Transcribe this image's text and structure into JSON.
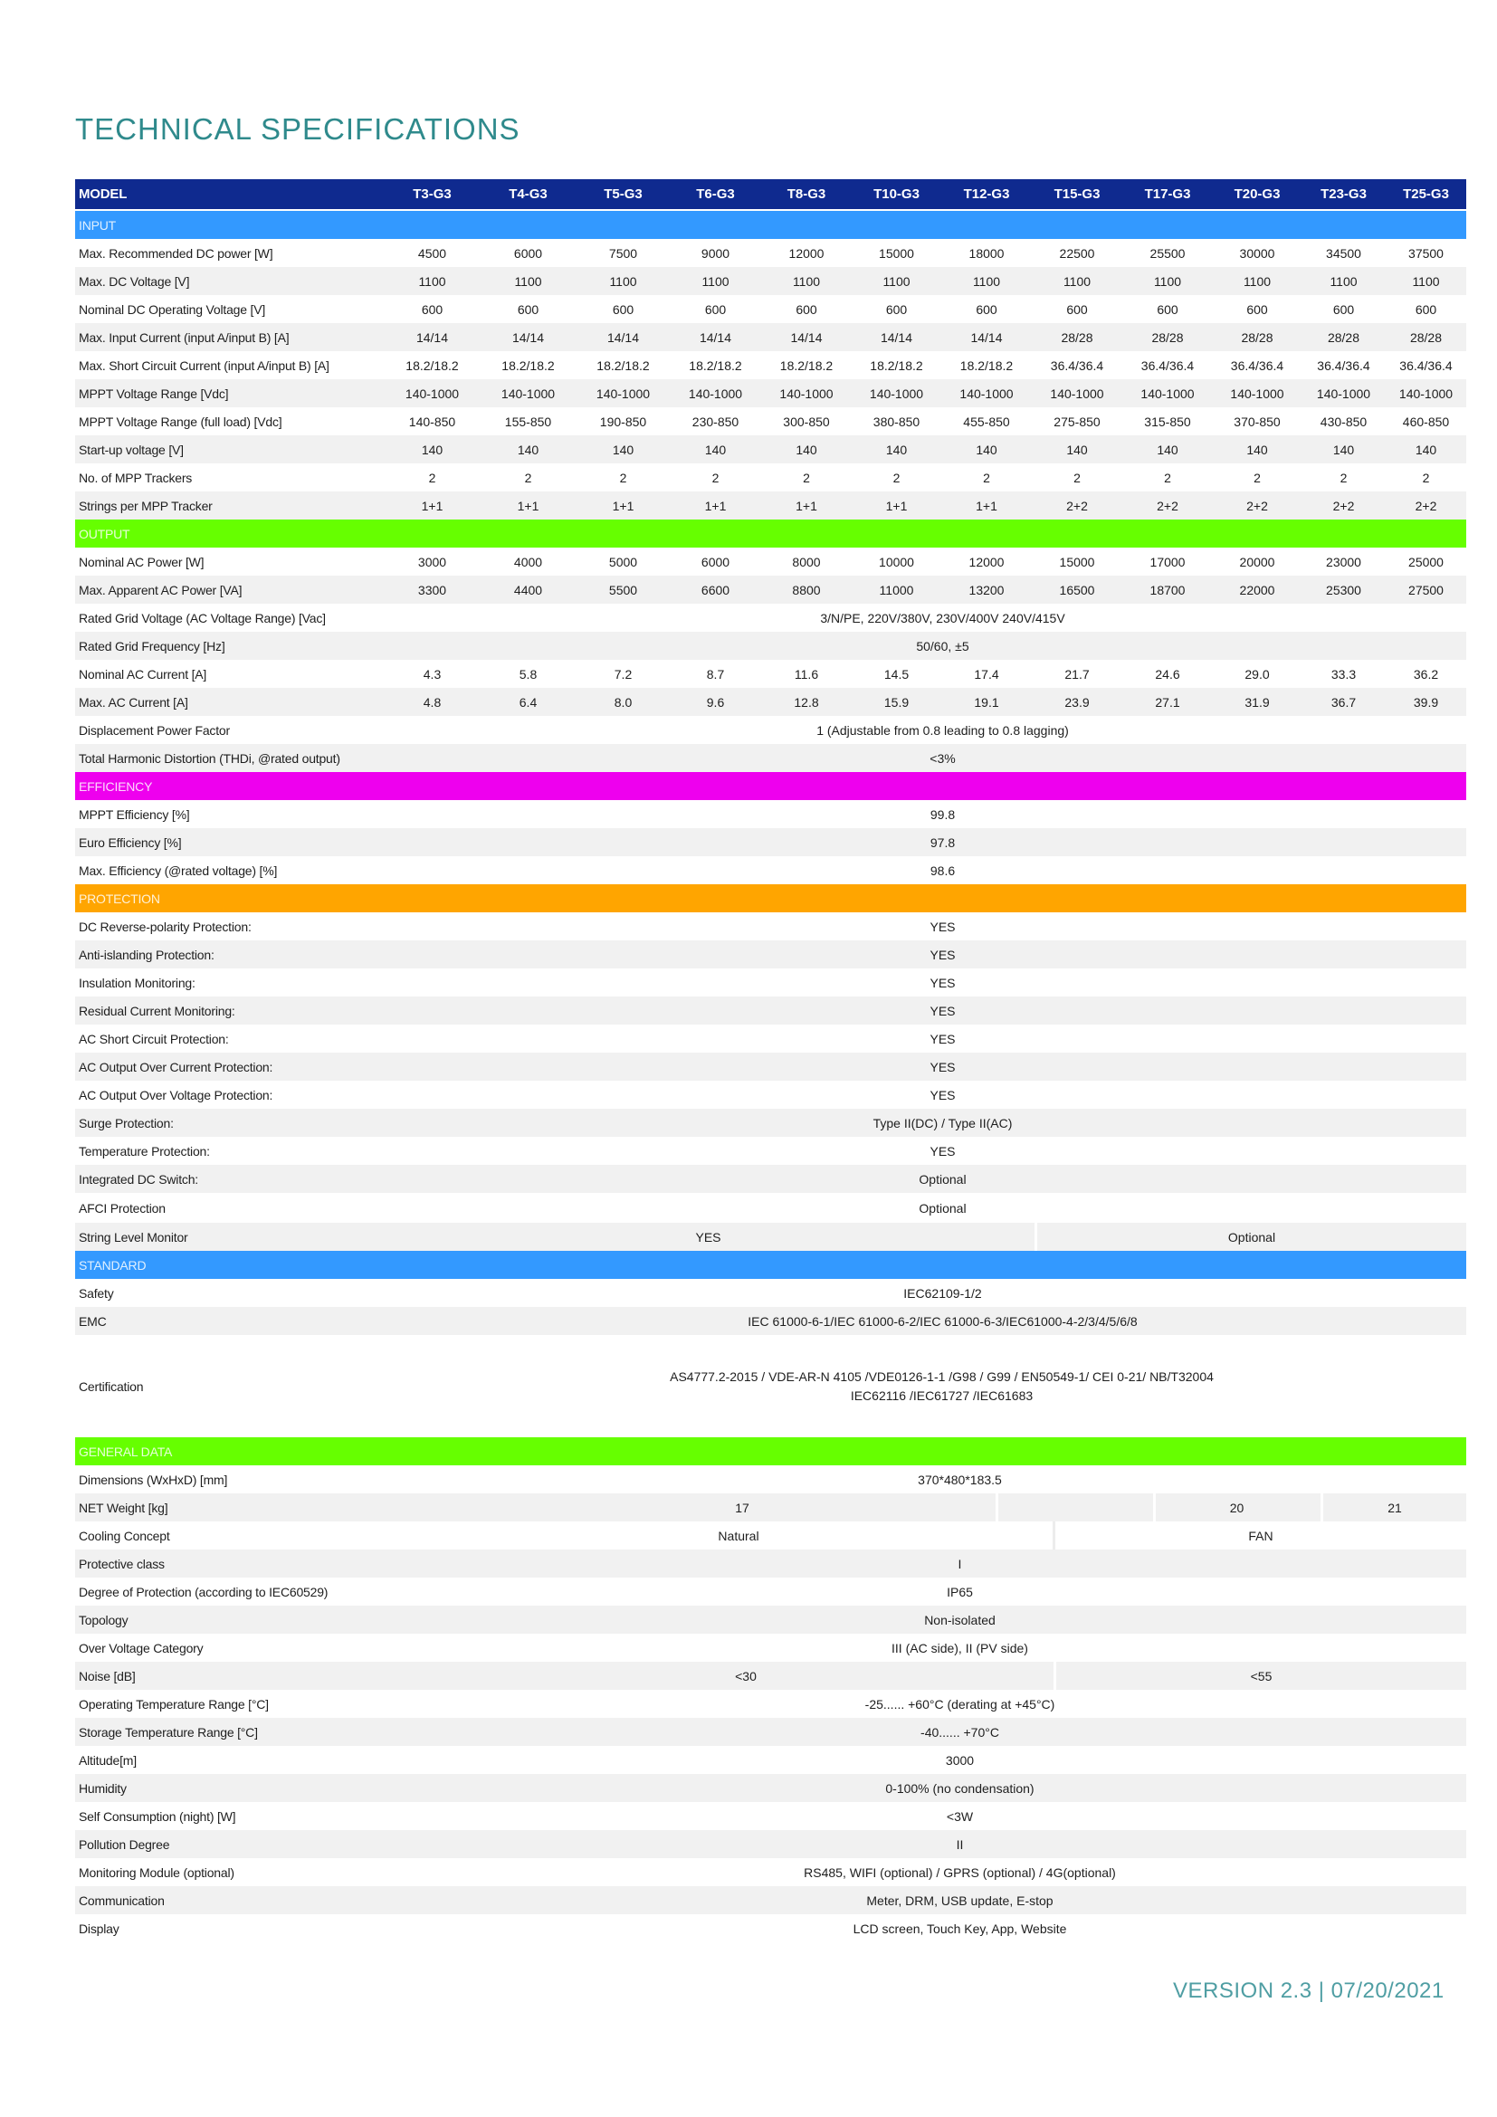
{
  "title": "TECHNICAL SPECIFICATIONS",
  "header": {
    "label": "MODEL",
    "models": [
      "T3-G3",
      "T4-G3",
      "T5-G3",
      "T6-G3",
      "T8-G3",
      "T10-G3",
      "T12-G3",
      "T15-G3",
      "T17-G3",
      "T20-G3",
      "T23-G3",
      "T25-G3"
    ]
  },
  "colors": {
    "header": "#0f2a8f",
    "input": "#3399ff",
    "output": "#66ff00",
    "efficiency": "#ee00ee",
    "protection": "#ffa500",
    "standard": "#3399ff",
    "general": "#66ff00",
    "title": "#2f8a8c",
    "row_alt": "#f1f1f1"
  },
  "sections": [
    {
      "name": "INPUT",
      "color": "#3399ff",
      "rows": [
        {
          "label": "Max. Recommended DC power [W]",
          "values": [
            "4500",
            "6000",
            "7500",
            "9000",
            "12000",
            "15000",
            "18000",
            "22500",
            "25500",
            "30000",
            "34500",
            "37500"
          ]
        },
        {
          "label": "Max. DC Voltage [V]",
          "values": [
            "1100",
            "1100",
            "1100",
            "1100",
            "1100",
            "1100",
            "1100",
            "1100",
            "1100",
            "1100",
            "1100",
            "1100"
          ]
        },
        {
          "label": "Nominal DC Operating Voltage [V]",
          "values": [
            "600",
            "600",
            "600",
            "600",
            "600",
            "600",
            "600",
            "600",
            "600",
            "600",
            "600",
            "600"
          ]
        },
        {
          "label": "Max. Input Current (input A/input B) [A]",
          "values": [
            "14/14",
            "14/14",
            "14/14",
            "14/14",
            "14/14",
            "14/14",
            "14/14",
            "28/28",
            "28/28",
            "28/28",
            "28/28",
            "28/28"
          ]
        },
        {
          "label": "Max. Short Circuit Current (input A/input B) [A]",
          "values": [
            "18.2/18.2",
            "18.2/18.2",
            "18.2/18.2",
            "18.2/18.2",
            "18.2/18.2",
            "18.2/18.2",
            "18.2/18.2",
            "36.4/36.4",
            "36.4/36.4",
            "36.4/36.4",
            "36.4/36.4",
            "36.4/36.4"
          ]
        },
        {
          "label": "MPPT Voltage Range [Vdc]",
          "values": [
            "140-1000",
            "140-1000",
            "140-1000",
            "140-1000",
            "140-1000",
            "140-1000",
            "140-1000",
            "140-1000",
            "140-1000",
            "140-1000",
            "140-1000",
            "140-1000"
          ]
        },
        {
          "label": "MPPT Voltage Range (full load) [Vdc]",
          "values": [
            "140-850",
            "155-850",
            "190-850",
            "230-850",
            "300-850",
            "380-850",
            "455-850",
            "275-850",
            "315-850",
            "370-850",
            "430-850",
            "460-850"
          ]
        },
        {
          "label": "Start-up voltage [V]",
          "values": [
            "140",
            "140",
            "140",
            "140",
            "140",
            "140",
            "140",
            "140",
            "140",
            "140",
            "140",
            "140"
          ]
        },
        {
          "label": "No. of MPP Trackers",
          "values": [
            "2",
            "2",
            "2",
            "2",
            "2",
            "2",
            "2",
            "2",
            "2",
            "2",
            "2",
            "2"
          ]
        },
        {
          "label": "Strings per MPP Tracker",
          "values": [
            "1+1",
            "1+1",
            "1+1",
            "1+1",
            "1+1",
            "1+1",
            "1+1",
            "2+2",
            "2+2",
            "2+2",
            "2+2",
            "2+2"
          ]
        }
      ]
    },
    {
      "name": "OUTPUT",
      "color": "#66ff00",
      "rows": [
        {
          "label": "Nominal AC Power [W]",
          "values": [
            "3000",
            "4000",
            "5000",
            "6000",
            "8000",
            "10000",
            "12000",
            "15000",
            "17000",
            "20000",
            "23000",
            "25000"
          ]
        },
        {
          "label": "Max. Apparent AC Power [VA]",
          "values": [
            "3300",
            "4400",
            "5500",
            "6600",
            "8800",
            "11000",
            "13200",
            "16500",
            "18700",
            "22000",
            "25300",
            "27500"
          ]
        },
        {
          "label": "Rated Grid Voltage (AC Voltage Range) [Vac]",
          "value": "3/N/PE, 220V/380V, 230V/400V 240V/415V"
        },
        {
          "label": "Rated Grid Frequency [Hz]",
          "value": "50/60, ±5"
        },
        {
          "label": "Nominal AC Current [A]",
          "values": [
            "4.3",
            "5.8",
            "7.2",
            "8.7",
            "11.6",
            "14.5",
            "17.4",
            "21.7",
            "24.6",
            "29.0",
            "33.3",
            "36.2"
          ]
        },
        {
          "label": "Max. AC Current [A]",
          "values": [
            "4.8",
            "6.4",
            "8.0",
            "9.6",
            "12.8",
            "15.9",
            "19.1",
            "23.9",
            "27.1",
            "31.9",
            "36.7",
            "39.9"
          ]
        },
        {
          "label": "Displacement Power Factor",
          "value": "1 (Adjustable from 0.8 leading to 0.8 lagging)"
        },
        {
          "label": "Total Harmonic Distortion (THDi, @rated output)",
          "value": "<3%"
        }
      ]
    },
    {
      "name": "EFFICIENCY",
      "color": "#ee00ee",
      "rows": [
        {
          "label": "MPPT Efficiency [%]",
          "value": "99.8"
        },
        {
          "label": "Euro Efficiency [%]",
          "value": "97.8"
        },
        {
          "label": "Max. Efficiency (@rated voltage) [%]",
          "value": "98.6"
        }
      ]
    },
    {
      "name": "PROTECTION",
      "color": "#ffa500",
      "rows": [
        {
          "label": "DC Reverse-polarity Protection:",
          "value": "YES"
        },
        {
          "label": "Anti-islanding Protection:",
          "value": "YES"
        },
        {
          "label": "Insulation Monitoring:",
          "value": "YES"
        },
        {
          "label": "Residual Current Monitoring:",
          "value": "YES"
        },
        {
          "label": "AC Short Circuit Protection:",
          "value": "YES"
        },
        {
          "label": "AC Output Over Current Protection:",
          "value": "YES"
        },
        {
          "label": "AC Output Over Voltage Protection:",
          "value": "YES"
        },
        {
          "label": "Surge Protection:",
          "value": "Type II(DC) / Type II(AC)"
        },
        {
          "label": "Temperature Protection:",
          "value": "YES"
        },
        {
          "label": "Integrated DC Switch:",
          "value": "Optional"
        },
        {
          "label": "AFCI Protection",
          "value": "Optional"
        },
        {
          "label": "String Level Monitor",
          "cells": [
            "YES",
            "Optional"
          ]
        }
      ]
    },
    {
      "name": "STANDARD",
      "color": "#3399ff",
      "rows": [
        {
          "label": "Safety",
          "value": "IEC62109-1/2"
        },
        {
          "label": "EMC",
          "value": "IEC 61000-6-1/IEC 61000-6-2/IEC 61000-6-3/IEC61000-4-2/3/4/5/6/8"
        },
        {
          "label": "Certification",
          "lines": [
            "AS4777.2-2015 / VDE-AR-N 4105 /VDE0126-1-1  /G98  / G99 / EN50549-1/ CEI 0-21/ NB/T32004",
            "IEC62116 /IEC61727 /IEC61683"
          ]
        }
      ]
    },
    {
      "name": "GENERAL DATA",
      "color": "#66ff00",
      "rows": [
        {
          "label": "Dimensions (WxHxD) [mm]",
          "value": "370*480*183.5"
        },
        {
          "label": "NET Weight [kg]",
          "cells": [
            "17",
            "",
            "20",
            "21"
          ]
        },
        {
          "label": "Cooling Concept",
          "cells": [
            "Natural",
            "FAN"
          ]
        },
        {
          "label": "Protective class",
          "value": "I"
        },
        {
          "label": "Degree of Protection (according to IEC60529)",
          "value": "IP65"
        },
        {
          "label": "Topology",
          "value": "Non-isolated"
        },
        {
          "label": "Over Voltage Category",
          "value": "III (AC side), II (PV side)"
        },
        {
          "label": "Noise [dB]",
          "cells": [
            "<30",
            "<55"
          ]
        },
        {
          "label": "Operating Temperature Range [°C]",
          "value": "-25...... +60°C (derating at +45°C)"
        },
        {
          "label": "Storage Temperature Range [°C]",
          "value": "-40...... +70°C"
        },
        {
          "label": "Altitude[m]",
          "value": "3000"
        },
        {
          "label": "Humidity",
          "value": "0-100% (no condensation)"
        },
        {
          "label": "Self Consumption (night) [W]",
          "value": "<3W"
        },
        {
          "label": "Pollution Degree",
          "value": "II"
        },
        {
          "label": "Monitoring Module (optional)",
          "value": "RS485, WIFI (optional) / GPRS (optional) / 4G(optional)"
        },
        {
          "label": "Communication",
          "value": "Meter, DRM, USB update, E-stop"
        },
        {
          "label": "Display",
          "value": "LCD screen, Touch Key, App, Website"
        }
      ]
    }
  ],
  "footer": {
    "version": "VERSION 2.3 | 07/20/2021"
  }
}
